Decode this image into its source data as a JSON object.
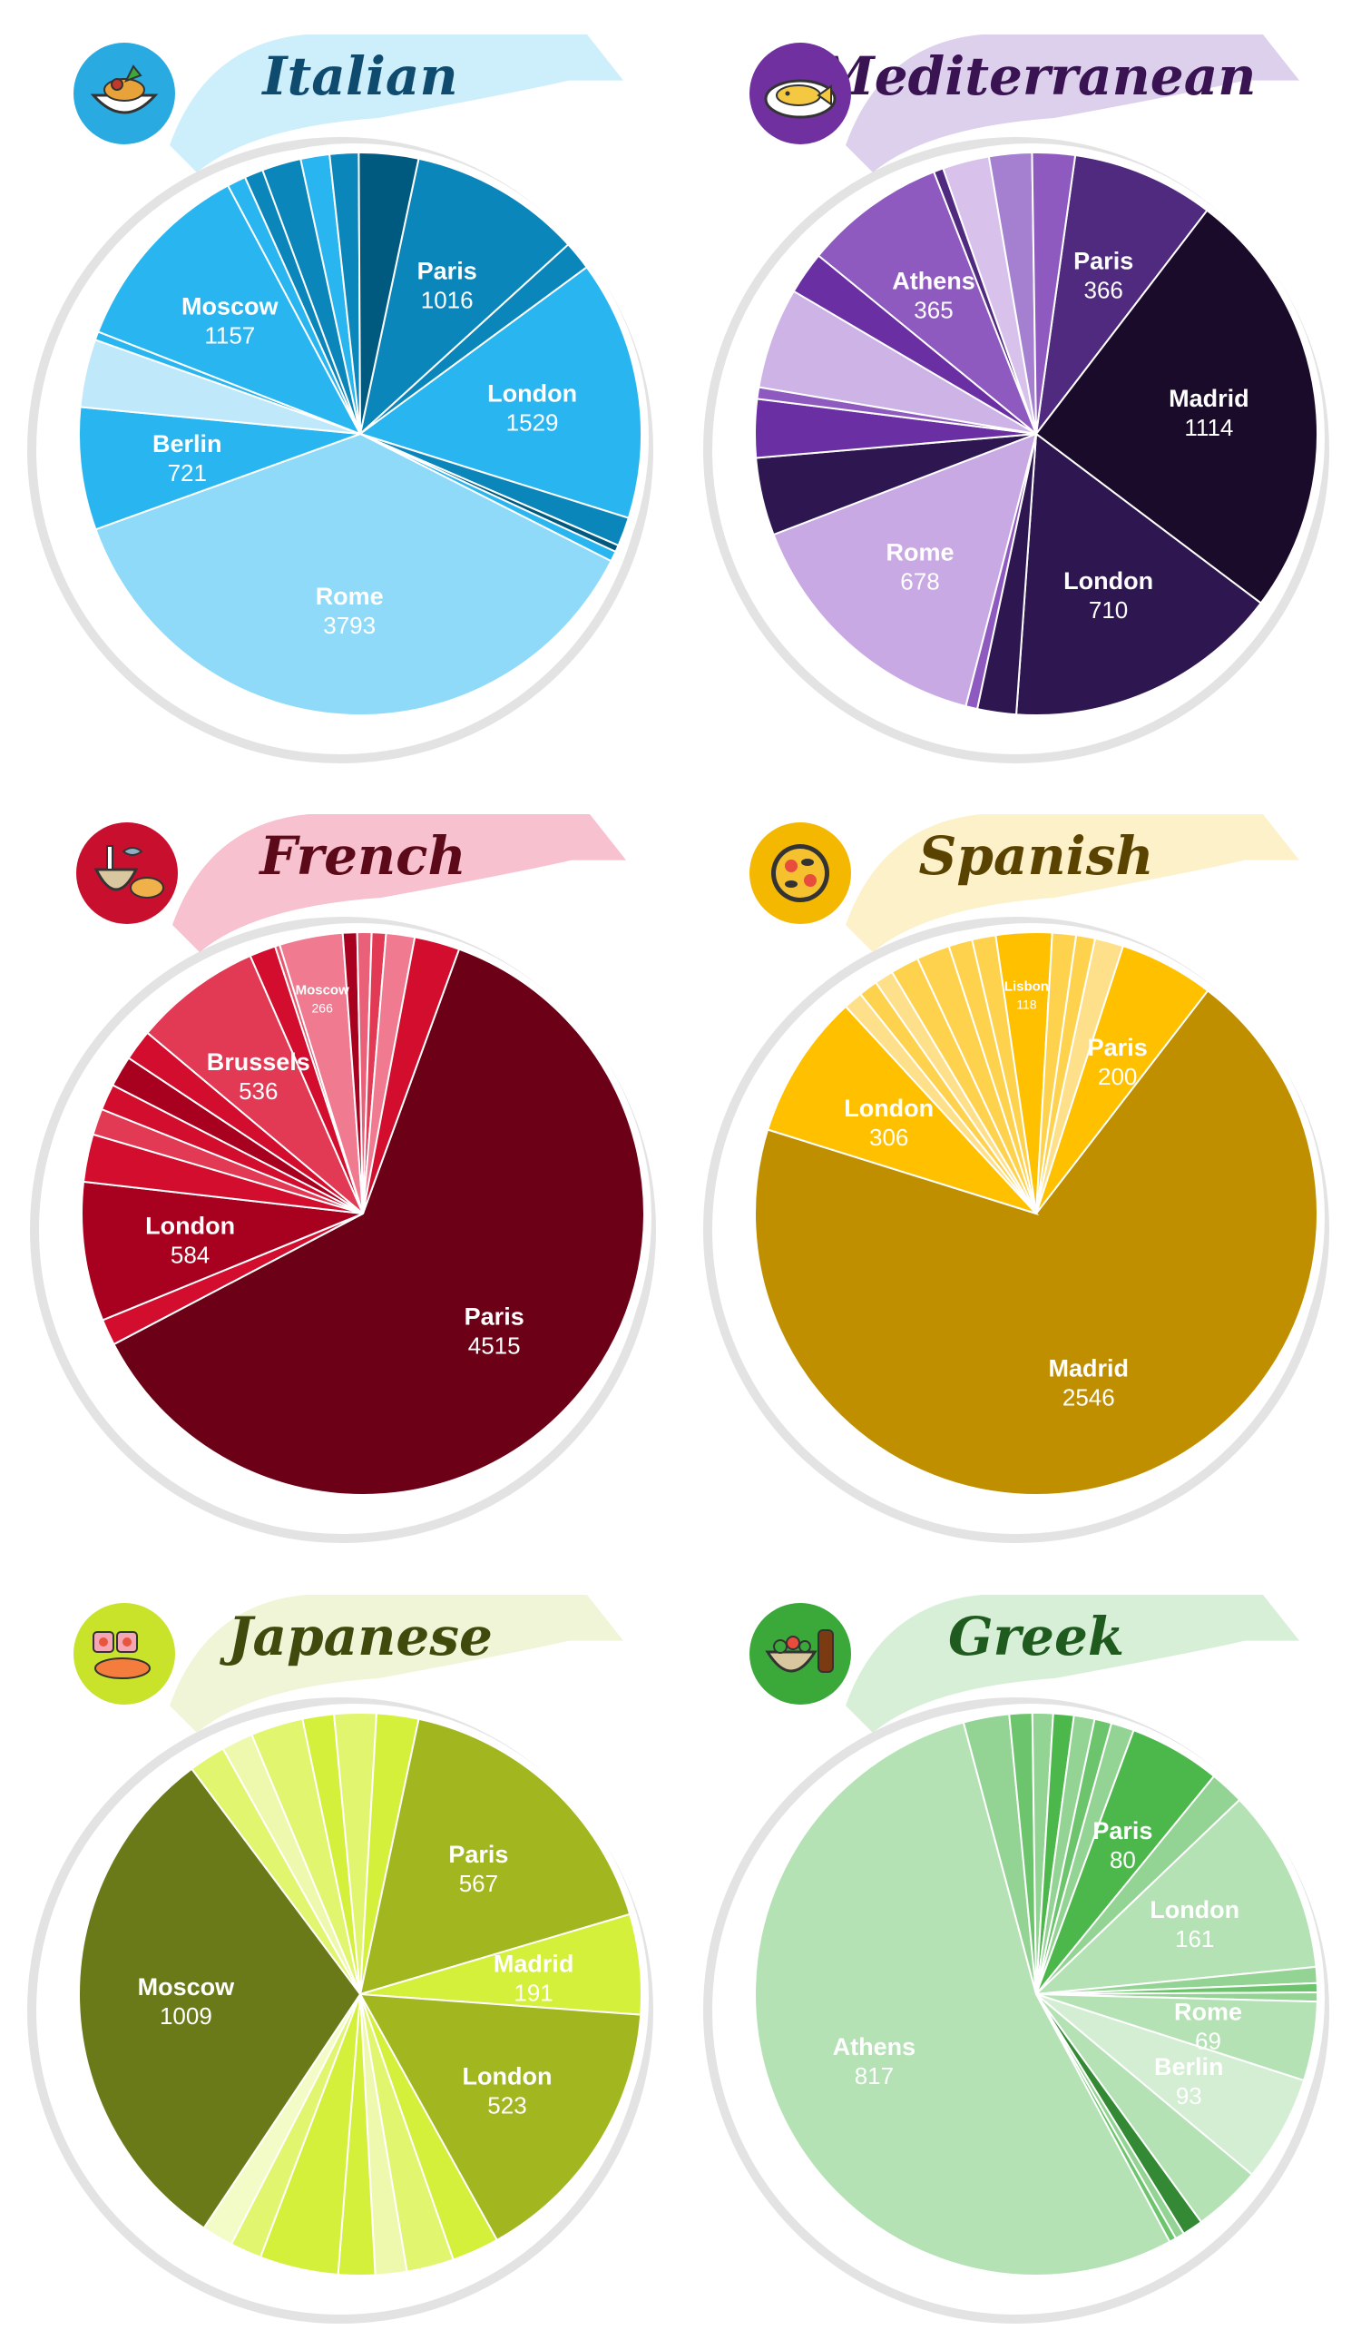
{
  "colors": {
    "background": "#ffffff",
    "swoosh": "#e3e3e3",
    "slice_border": "#ffffff"
  },
  "chart_data": [
    {
      "type": "pie",
      "title": "Italian",
      "icon": "pasta-bowl-icon",
      "theme": {
        "banner": "#cdeefb",
        "icon_circle": "#29abe2",
        "title": "#0f4b6e",
        "palette": [
          "#0a86ba",
          "#0a86ba",
          "#29b6f0",
          "#0a86ba",
          "#005a80",
          "#29b6f0",
          "#8fdaf8",
          "#29b6f0",
          "#bfe9fb",
          "#29b6f0",
          "#29b6f0",
          "#29b6f0"
        ]
      },
      "slices": [
        {
          "name": "Paris",
          "value": 1016,
          "label": true
        },
        {
          "name": "",
          "value": 170
        },
        {
          "name": "London",
          "value": 1529,
          "label": true
        },
        {
          "name": "",
          "value": 170
        },
        {
          "name": "",
          "value": 40
        },
        {
          "name": "",
          "value": 60
        },
        {
          "name": "Rome",
          "value": 3793,
          "label": true
        },
        {
          "name": "Berlin",
          "value": 721,
          "label": true
        },
        {
          "name": "",
          "value": 400
        },
        {
          "name": "",
          "value": 50
        },
        {
          "name": "Moscow",
          "value": 1157,
          "label": true
        },
        {
          "name": "",
          "value": 110
        },
        {
          "name": "",
          "value": 110
        },
        {
          "name": "",
          "value": 230
        },
        {
          "name": "",
          "value": 170
        },
        {
          "name": "",
          "value": 170
        },
        {
          "name": "",
          "value": 350
        }
      ]
    },
    {
      "type": "pie",
      "title": "Mediterranean",
      "icon": "fish-plate-icon",
      "theme": {
        "banner": "#ddd0ec",
        "icon_circle": "#7030a0",
        "title": "#3a1452",
        "palette": [
          "#4f2a7f",
          "#1a0b2b",
          "#2e1650",
          "#2e1650",
          "#8f5ac0",
          "#c9a9e3",
          "#2e1650",
          "#6b2fa4",
          "#8f5ac0",
          "#cdb3e6",
          "#6b2fa4",
          "#8f5ac0",
          "#4f2a7f",
          "#d8c2ec",
          "#a57fd0",
          "#8f5ac0",
          "#a57fd0"
        ]
      },
      "slices": [
        {
          "name": "Paris",
          "value": 366,
          "label": true
        },
        {
          "name": "Madrid",
          "value": 1114,
          "label": true
        },
        {
          "name": "London",
          "value": 710,
          "label": true
        },
        {
          "name": "",
          "value": 100
        },
        {
          "name": "",
          "value": 30
        },
        {
          "name": "Rome",
          "value": 678,
          "label": true
        },
        {
          "name": "",
          "value": 200
        },
        {
          "name": "",
          "value": 150
        },
        {
          "name": "",
          "value": 30
        },
        {
          "name": "",
          "value": 260
        },
        {
          "name": "",
          "value": 110
        },
        {
          "name": "Athens",
          "value": 365,
          "label": true
        },
        {
          "name": "",
          "value": 25
        },
        {
          "name": "",
          "value": 120
        },
        {
          "name": "",
          "value": 110
        },
        {
          "name": "",
          "value": 110
        }
      ]
    },
    {
      "type": "pie",
      "title": "French",
      "icon": "bowl-and-bread-icon",
      "theme": {
        "banner": "#f7c1cf",
        "icon_circle": "#c8102e",
        "title": "#5c0a1a",
        "palette": [
          "#6b0016",
          "#d30d2e",
          "#a8001f",
          "#d30d2e",
          "#e23a55",
          "#d30d2e",
          "#a8001f",
          "#d30d2e",
          "#e23a55",
          "#d30d2e",
          "#e8566e",
          "#f07a90",
          "#a8001f",
          "#ea6079",
          "#e23a55",
          "#f07a90",
          "#d30d2e"
        ]
      },
      "slices": [
        {
          "name": "Paris",
          "value": 4515,
          "label": true
        },
        {
          "name": "",
          "value": 110
        },
        {
          "name": "London",
          "value": 584,
          "label": true
        },
        {
          "name": "",
          "value": 200
        },
        {
          "name": "",
          "value": 110
        },
        {
          "name": "",
          "value": 110
        },
        {
          "name": "",
          "value": 130
        },
        {
          "name": "",
          "value": 130
        },
        {
          "name": "Brussels",
          "value": 536,
          "label": true
        },
        {
          "name": "",
          "value": 110
        },
        {
          "name": "",
          "value": 20
        },
        {
          "name": "Moscow",
          "value": 266,
          "label": true
        },
        {
          "name": "",
          "value": 60
        },
        {
          "name": "",
          "value": 60
        },
        {
          "name": "",
          "value": 60
        },
        {
          "name": "",
          "value": 120
        },
        {
          "name": "",
          "value": 190
        }
      ]
    },
    {
      "type": "pie",
      "title": "Spanish",
      "icon": "paella-pan-icon",
      "theme": {
        "banner": "#fdf1c9",
        "icon_circle": "#f5b800",
        "title": "#5a4300",
        "palette": [
          "#ffc000",
          "#bf8f00",
          "#ffc000",
          "#ffe08a",
          "#ffd24d",
          "#ffe08a",
          "#ffd24d",
          "#ffd24d",
          "#ffd24d",
          "#ffd24d",
          "#ffc000",
          "#ffd24d",
          "#ffd24d",
          "#ffe08a"
        ]
      },
      "slices": [
        {
          "name": "Paris",
          "value": 200,
          "label": true
        },
        {
          "name": "Madrid",
          "value": 2546,
          "label": true
        },
        {
          "name": "London",
          "value": 306,
          "label": true
        },
        {
          "name": "",
          "value": 40
        },
        {
          "name": "",
          "value": 40
        },
        {
          "name": "",
          "value": 40
        },
        {
          "name": "",
          "value": 60
        },
        {
          "name": "",
          "value": 70
        },
        {
          "name": "",
          "value": 50
        },
        {
          "name": "",
          "value": 50
        },
        {
          "name": "Lisbon",
          "value": 118,
          "label": true
        },
        {
          "name": "",
          "value": 50
        },
        {
          "name": "",
          "value": 40
        },
        {
          "name": "",
          "value": 60
        }
      ]
    },
    {
      "type": "pie",
      "title": "Japanese",
      "icon": "sushi-icon",
      "theme": {
        "banner": "#f1f5d8",
        "icon_circle": "#c9e22a",
        "title": "#3f4a0c",
        "palette": [
          "#a2b61f",
          "#d4f03a",
          "#a2b61f",
          "#d4f03a",
          "#e2f56f",
          "#eef9ae",
          "#d4f03a",
          "#d4f03a",
          "#e2f56f",
          "#f3fbc6",
          "#6b7a19",
          "#e2f56f",
          "#eef9ae",
          "#e2f56f",
          "#d4f03a",
          "#e2f56f",
          "#d4f03a"
        ]
      },
      "slices": [
        {
          "name": "Paris",
          "value": 567,
          "label": true
        },
        {
          "name": "Madrid",
          "value": 191,
          "label": true
        },
        {
          "name": "London",
          "value": 523,
          "label": true
        },
        {
          "name": "",
          "value": 90
        },
        {
          "name": "",
          "value": 90
        },
        {
          "name": "",
          "value": 60
        },
        {
          "name": "",
          "value": 70
        },
        {
          "name": "",
          "value": 150
        },
        {
          "name": "",
          "value": 60
        },
        {
          "name": "",
          "value": 60
        },
        {
          "name": "Moscow",
          "value": 1009,
          "label": true
        },
        {
          "name": "",
          "value": 70
        },
        {
          "name": "",
          "value": 60
        },
        {
          "name": "",
          "value": 100
        },
        {
          "name": "",
          "value": 60
        },
        {
          "name": "",
          "value": 80
        },
        {
          "name": "",
          "value": 80
        }
      ]
    },
    {
      "type": "pie",
      "title": "Greek",
      "icon": "salad-bowl-icon",
      "theme": {
        "banner": "#d6efd6",
        "icon_circle": "#3aa93a",
        "title": "#1f5a1f",
        "palette": [
          "#6cc56c",
          "#93d393",
          "#4cb84c",
          "#93d393",
          "#b5e2b5",
          "#93d393",
          "#6cc56c",
          "#93d393",
          "#b5e2b5",
          "#d3eed3",
          "#b5e2b5",
          "#348a34",
          "#93d393",
          "#6cc56c",
          "#b5e2b5",
          "#93d393"
        ]
      },
      "slices": [
        {
          "name": "",
          "value": 15
        },
        {
          "name": "",
          "value": 20
        },
        {
          "name": "Paris",
          "value": 80,
          "label": true
        },
        {
          "name": "",
          "value": 30
        },
        {
          "name": "London",
          "value": 161,
          "label": true
        },
        {
          "name": "",
          "value": 14
        },
        {
          "name": "",
          "value": 8
        },
        {
          "name": "",
          "value": 8
        },
        {
          "name": "Rome",
          "value": 69,
          "label": true
        },
        {
          "name": "Berlin",
          "value": 93,
          "label": true
        },
        {
          "name": "",
          "value": 60
        },
        {
          "name": "",
          "value": 18
        },
        {
          "name": "",
          "value": 8
        },
        {
          "name": "",
          "value": 6
        },
        {
          "name": "Athens",
          "value": 817,
          "label": true
        },
        {
          "name": "",
          "value": 40
        },
        {
          "name": "",
          "value": 20
        },
        {
          "name": "",
          "value": 18
        },
        {
          "name": "",
          "value": 18
        },
        {
          "name": "",
          "value": 18
        }
      ]
    }
  ]
}
